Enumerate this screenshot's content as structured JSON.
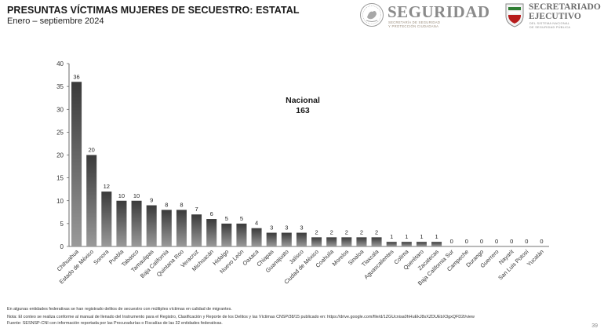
{
  "header": {
    "title": "PRESUNTAS VÍCTIMAS MUJERES DE SECUESTRO: ESTATAL",
    "subtitle": "Enero – septiembre 2024"
  },
  "logos": {
    "seguridad": {
      "word": "SEGURIDAD",
      "small1": "SECRETARÍA DE SEGURIDAD",
      "small2": "Y PROTECCIÓN CIUDADANA"
    },
    "secretariado": {
      "line1": "SECRETARIADO",
      "line2": "EJECUTIVO",
      "small1": "DEL SISTEMA NACIONAL",
      "small2": "DE SEGURIDAD PÚBLICA"
    }
  },
  "chart_data": {
    "type": "bar",
    "categories": [
      "Chihuahua",
      "Estado de México",
      "Sonora",
      "Puebla",
      "Tabasco",
      "Tamaulipas",
      "Baja California",
      "Quintana Roo",
      "Veracruz",
      "Michoacán",
      "Hidalgo",
      "Nuevo León",
      "Oaxaca",
      "Chiapas",
      "Guanajuato",
      "Jalisco",
      "Ciudad de México",
      "Coahuila",
      "Morelos",
      "Sinaloa",
      "Tlaxcala",
      "Aguascalientes",
      "Colima",
      "Querétaro",
      "Zacatecas",
      "Baja California Sur",
      "Campeche",
      "Durango",
      "Guerrero",
      "Nayarit",
      "San Luis Potosí",
      "Yucatán"
    ],
    "values": [
      36,
      20,
      12,
      10,
      10,
      9,
      8,
      8,
      7,
      6,
      5,
      5,
      4,
      3,
      3,
      3,
      2,
      2,
      2,
      2,
      2,
      1,
      1,
      1,
      1,
      0,
      0,
      0,
      0,
      0,
      0,
      0
    ],
    "ylim": [
      0,
      40
    ],
    "yticks": [
      0,
      5,
      10,
      15,
      20,
      25,
      30,
      35,
      40
    ],
    "annotation": {
      "line1": "Nacional",
      "line2": "163"
    },
    "colors": {
      "bar_top": "#3a3a3a",
      "bar_bottom": "#9a9a9a",
      "axis": "#444444"
    }
  },
  "footer": {
    "line1": "En algunas entidades federativas se han registrado delitos de secuestro con múltiples víctimas en calidad de migrantes.",
    "line2": "Nota: El conteo se realiza conforme al manual de llenado del Instrumento para el Registro, Clasificación y Reporte de los Delitos y las Víctimas CNSP/38/15 publicado en: https://drive.google.com/file/d/1ZGUcnisa0hHuEkJ8sXZDUEbX3gxQFD2t/view",
    "line3": "Fuente: SESNSP-CNI con información reportada por las Procuradurías o Fiscalías de las 32 entidades federativas.",
    "page": "39"
  }
}
